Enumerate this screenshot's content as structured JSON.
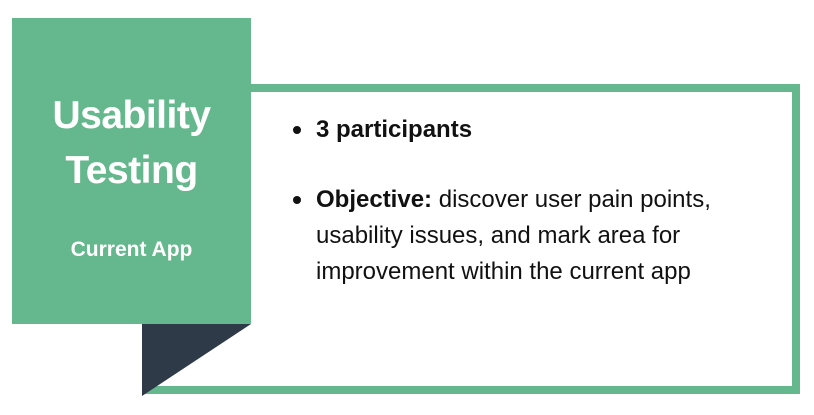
{
  "title_card": {
    "title_line_1": "Usability",
    "title_line_2": "Testing",
    "subtitle": "Current App"
  },
  "bullets": [
    {
      "lead": "3 participants",
      "body": ""
    },
    {
      "lead": "Objective:",
      "body": " discover user pain points, usability issues, and mark area for improvement within the current app"
    }
  ],
  "colors": {
    "accent_green": "#65b78d",
    "fold_shadow": "#2f3a49",
    "text": "#111111",
    "background": "#ffffff"
  }
}
